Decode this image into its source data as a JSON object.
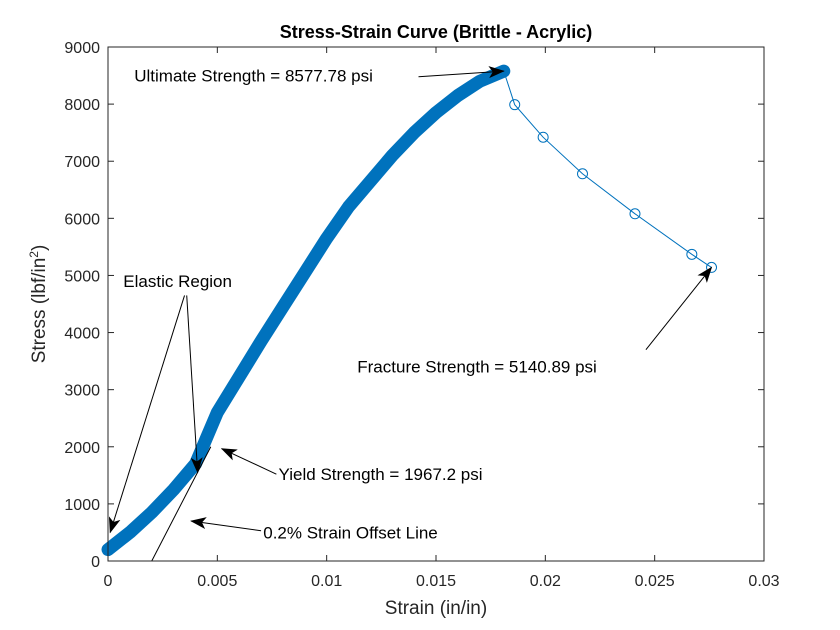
{
  "chart_data": {
    "type": "line",
    "title": "Stress-Strain Curve (Brittle - Acrylic)",
    "xlabel": "Strain (in/in)",
    "ylabel_main": "Stress (lbf/in",
    "ylabel_sup": "2",
    "ylabel_close": ")",
    "xlim": [
      0,
      0.03
    ],
    "ylim": [
      0,
      9000
    ],
    "xticks": [
      0,
      0.005,
      0.01,
      0.015,
      0.02,
      0.025,
      0.03
    ],
    "xtick_labels": [
      "0",
      "0.005",
      "0.01",
      "0.015",
      "0.02",
      "0.025",
      "0.03"
    ],
    "yticks": [
      0,
      1000,
      2000,
      3000,
      4000,
      5000,
      6000,
      7000,
      8000,
      9000
    ],
    "ytick_labels": [
      "0",
      "1000",
      "2000",
      "3000",
      "4000",
      "5000",
      "6000",
      "7000",
      "8000",
      "9000"
    ],
    "grid": false,
    "series": [
      {
        "style": "thick-line",
        "color": "#0072BD",
        "x": [
          0,
          0.001,
          0.002,
          0.003,
          0.004,
          0.0045,
          0.005,
          0.0058,
          0.007,
          0.008,
          0.009,
          0.01,
          0.011,
          0.012,
          0.013,
          0.014,
          0.015,
          0.016,
          0.017,
          0.0181
        ],
        "y": [
          200,
          500,
          850,
          1250,
          1700,
          2150,
          2600,
          3100,
          3850,
          4450,
          5050,
          5650,
          6200,
          6650,
          7100,
          7500,
          7850,
          8150,
          8400,
          8577.78
        ]
      },
      {
        "style": "line-circle-markers",
        "color": "#0072BD",
        "x": [
          0.0181,
          0.0186,
          0.0199,
          0.0217,
          0.0241,
          0.0267,
          0.0276
        ],
        "y": [
          8577.78,
          7990,
          7420,
          6780,
          6080,
          5370,
          5140.89
        ]
      },
      {
        "style": "offset-line",
        "color": "#000000",
        "x": [
          0.002,
          0.0047
        ],
        "y": [
          0,
          2000
        ]
      }
    ],
    "annotations": [
      {
        "text": "Ultimate Strength = 8577.78 psi",
        "x": 0.0012,
        "y": 8400,
        "anchor": "start",
        "arrows": [
          {
            "from": [
              0.0142,
              8480
            ],
            "to": [
              0.0181,
              8577.78
            ]
          }
        ]
      },
      {
        "text": "Fracture Strength = 5140.89 psi",
        "x": 0.0114,
        "y": 3300,
        "anchor": "start",
        "arrows": [
          {
            "from": [
              0.0246,
              3700
            ],
            "to": [
              0.0276,
              5140.89
            ]
          }
        ]
      },
      {
        "text": "Elastic Region",
        "x": 0.0007,
        "y": 4800,
        "anchor": "start",
        "arrows": [
          {
            "from": [
              0.0035,
              4650
            ],
            "to": [
              0.0001,
              500
            ]
          },
          {
            "from": [
              0.0036,
              4650
            ],
            "to": [
              0.0041,
              1550
            ]
          }
        ]
      },
      {
        "text": "Yield Strength = 1967.2 psi",
        "x": 0.0078,
        "y": 1420,
        "anchor": "start",
        "arrows": [
          {
            "from": [
              0.0077,
              1520
            ],
            "to": [
              0.0052,
              1967.2
            ]
          }
        ]
      },
      {
        "text": "0.2% Strain Offset Line",
        "x": 0.0071,
        "y": 390,
        "anchor": "start",
        "arrows": [
          {
            "from": [
              0.007,
              530
            ],
            "to": [
              0.0038,
              700
            ]
          }
        ]
      }
    ]
  }
}
